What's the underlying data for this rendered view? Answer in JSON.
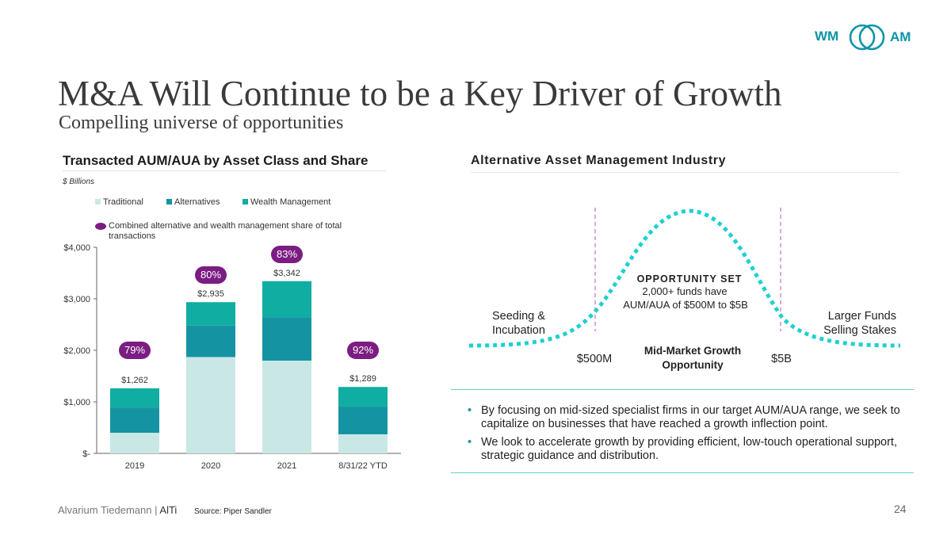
{
  "logo": {
    "left": "WM",
    "right": "AM"
  },
  "title": "M&A Will Continue to be a Key Driver of Growth",
  "subtitle": "Compelling universe of opportunities",
  "left_panel": {
    "title": "Transacted AUM/AUA by Asset Class and Share",
    "units": "$ Billions",
    "legend": [
      {
        "label": "Traditional",
        "color": "#c9e8e5"
      },
      {
        "label": "Alternatives",
        "color": "#1493a3"
      },
      {
        "label": "Wealth Management",
        "color": "#10ada2"
      }
    ],
    "share_legend": "Combined alternative and wealth management share of total transactions"
  },
  "chart_data": {
    "type": "bar",
    "stacked": true,
    "title": "Transacted AUM/AUA by Asset Class and Share",
    "ylabel": "$ Billions",
    "ylim": [
      0,
      4000
    ],
    "yticks": [
      0,
      1000,
      2000,
      3000,
      4000
    ],
    "ytick_labels": [
      "$-",
      "$1,000",
      "$2,000",
      "$3,000",
      "$4,000"
    ],
    "categories": [
      "2019",
      "2020",
      "2021",
      "8/31/22 YTD"
    ],
    "series": [
      {
        "name": "Traditional",
        "color": "#c9e8e5",
        "values": [
          400,
          1870,
          1800,
          370
        ]
      },
      {
        "name": "Alternatives",
        "color": "#1493a3",
        "values": [
          490,
          610,
          840,
          530
        ]
      },
      {
        "name": "Wealth Management",
        "color": "#10ada2",
        "values": [
          372,
          455,
          702,
          389
        ]
      }
    ],
    "totals": [
      1262,
      2935,
      3342,
      1289
    ],
    "total_labels": [
      "$1,262",
      "$2,935",
      "$3,342",
      "$1,289"
    ],
    "share_labels": [
      "79%",
      "80%",
      "83%",
      "92%"
    ],
    "share_values": [
      79,
      80,
      83,
      92
    ]
  },
  "right_panel": {
    "title": "Alternative Asset Management Industry",
    "opportunity_heading": "OPPORTUNITY SET",
    "opportunity_line1": "2,000+ funds have",
    "opportunity_line2": "AUM/AUA of $500M to $5B",
    "seeding_line1": "Seeding &",
    "seeding_line2": "Incubation",
    "larger_line1": "Larger Funds",
    "larger_line2": "Selling Stakes",
    "marker_left": "$500M",
    "marker_right": "$5B",
    "midmarket_line1": "Mid-Market Growth",
    "midmarket_line2": "Opportunity",
    "bullets": [
      "By focusing on mid-sized specialist firms in our target AUM/AUA range, we seek to capitalize on businesses that have reached a growth inflection point.",
      "We look to accelerate growth by providing efficient, low-touch operational support, strategic guidance and distribution."
    ]
  },
  "footer": {
    "brand": "Alvarium Tiedemann |",
    "brand_short": "AlTi",
    "source": "Source: Piper Sandler",
    "page_number": "24"
  },
  "colors": {
    "accent": "#0e95a8",
    "purple": "#7b1d82",
    "dotted_curve": "#1fd0d0"
  }
}
